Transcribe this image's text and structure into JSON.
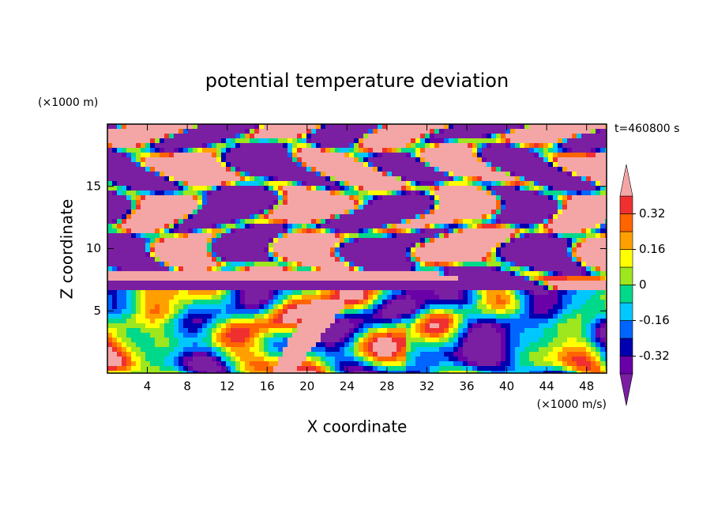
{
  "chart_data": {
    "type": "contour",
    "title": "potential temperature deviation",
    "x_label": "X coordinate",
    "y_label": "Z coordinate",
    "x_unit": "(×1000 m/s)",
    "y_unit": "(×1000 m)",
    "annotation": "t=460800 s",
    "xlim": [
      0,
      50
    ],
    "ylim": [
      0,
      20
    ],
    "xticks": [
      4,
      8,
      12,
      16,
      20,
      24,
      28,
      32,
      36,
      40,
      44,
      48
    ],
    "yticks": [
      5,
      10,
      15
    ],
    "colorbar": {
      "levels": [
        -0.4,
        -0.32,
        -0.24,
        -0.16,
        -0.08,
        0,
        0.08,
        0.16,
        0.24,
        0.32,
        0.4
      ],
      "colors": [
        "#7a1fa2",
        "#6a00a8",
        "#0000b0",
        "#0064ff",
        "#00c8ff",
        "#00d88a",
        "#9ee61e",
        "#ffff00",
        "#ffa000",
        "#ff6400",
        "#f03030",
        "#f4a6a6"
      ],
      "ticks": [
        0.32,
        0.16,
        0,
        -0.16,
        -0.32
      ]
    }
  }
}
